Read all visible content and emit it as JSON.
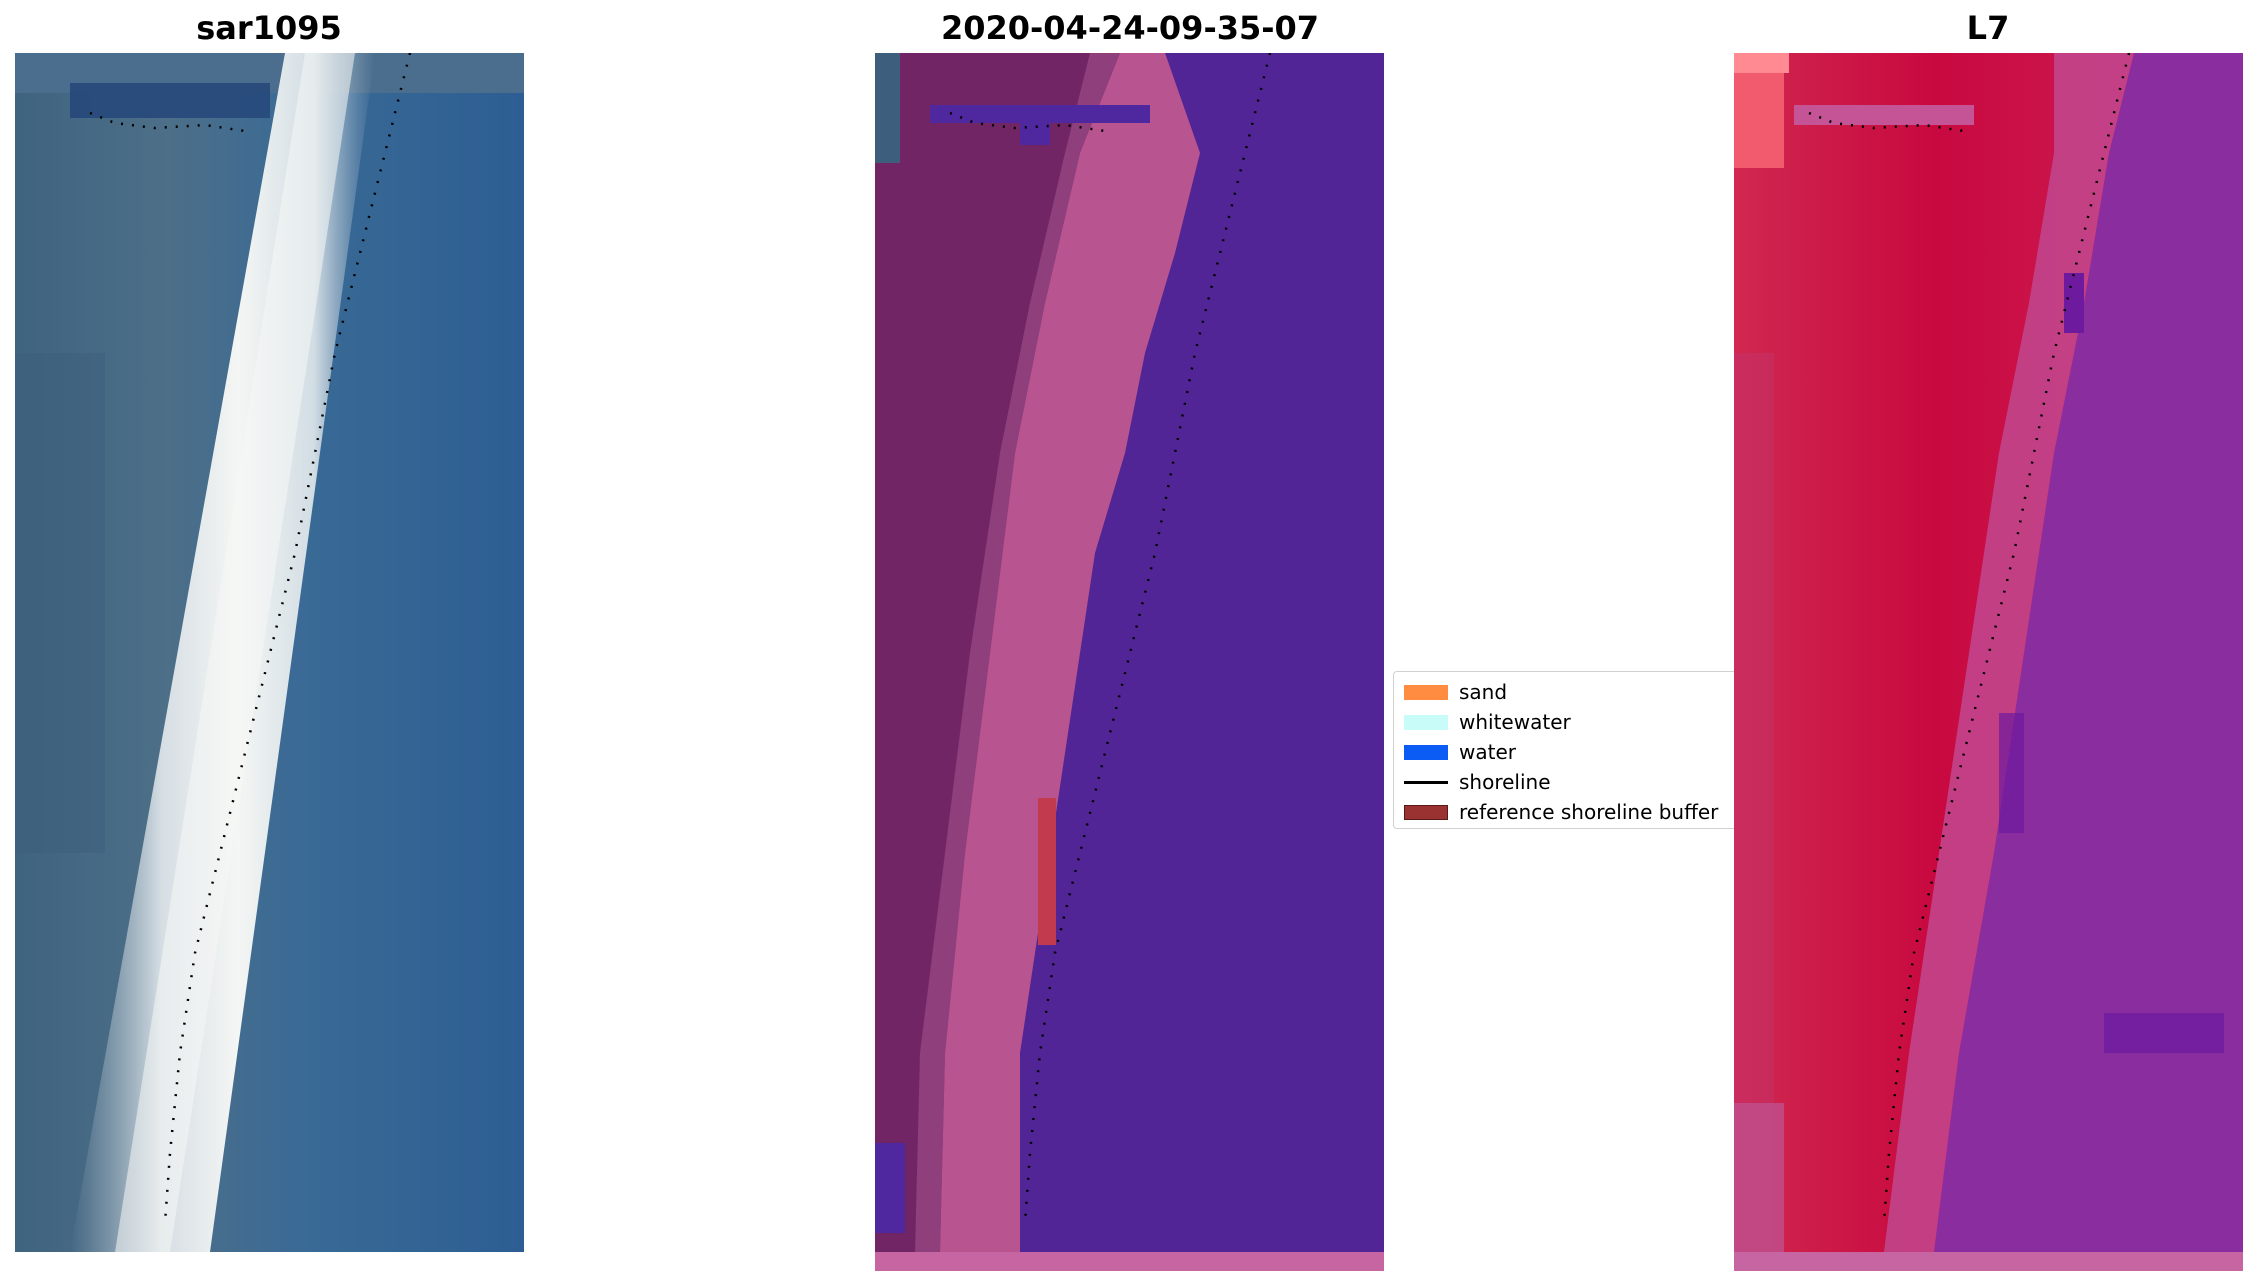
{
  "panels": [
    {
      "title": "sar1095"
    },
    {
      "title": "2020-04-24-09-35-07"
    },
    {
      "title": "L7"
    }
  ],
  "legend": {
    "entries": [
      {
        "label": "sand",
        "kind": "patch",
        "color": "#ff8c40"
      },
      {
        "label": "whitewater",
        "kind": "patch",
        "color": "#c8fcf8"
      },
      {
        "label": "water",
        "kind": "patch",
        "color": "#0a5cf5"
      },
      {
        "label": "shoreline",
        "kind": "line",
        "color": "#000000"
      },
      {
        "label": "reference shoreline buffer",
        "kind": "patch",
        "color": "#9a3232"
      }
    ]
  },
  "colors": {
    "rgb_water": "#2c5d91",
    "rgb_land": "#4d6e87",
    "rgb_whitewater": "#e8eef0",
    "class_water": "#522596",
    "class_land": "#722564",
    "class_sand_zone": "#b8548f",
    "ndwi_land": "#cc1445",
    "ndwi_water": "#8a2d9e",
    "shoreline": "#000000"
  }
}
